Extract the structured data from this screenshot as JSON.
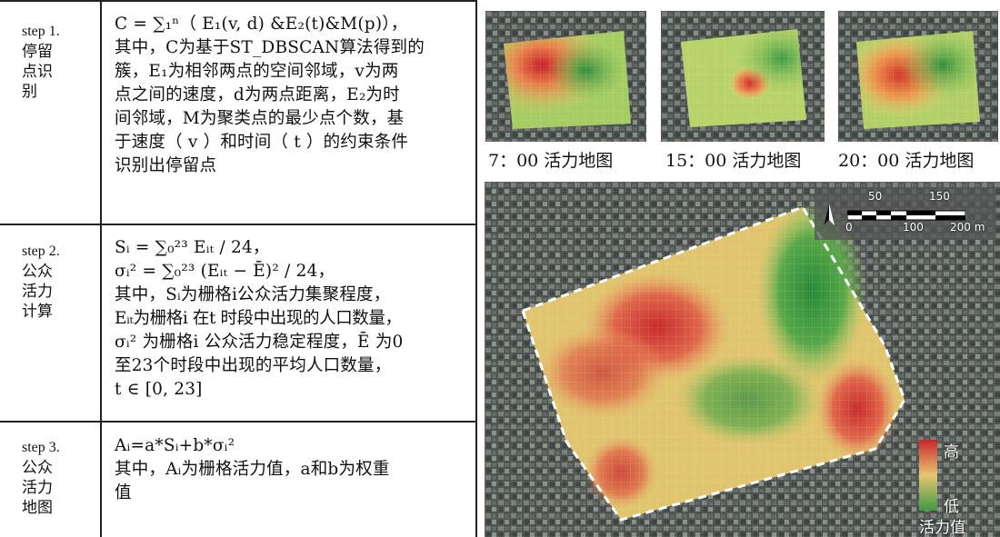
{
  "steps": [
    {
      "step": "step 1.",
      "label": [
        "停留",
        "点识",
        "别"
      ],
      "lines": [
        "C = ∑₁ⁿ（ E₁(v, d) &E₂(t)&M(p)），",
        "其中，C为基于ST_DBSCAN算法得到的",
        "簇，E₁为相邻两点的空间邻域，v为两",
        "点之间的速度，d为两点距离，E₂为时",
        "间邻域，M为聚类点的最少点个数，基",
        "于速度（ v ）和时间（ t ）的约束条件",
        "识别出停留点"
      ]
    },
    {
      "step": "step 2.",
      "label": [
        "公众",
        "活力",
        "计算"
      ],
      "lines": [
        "Sᵢ = ∑₀²³ Eᵢₜ / 24，",
        "σᵢ² = ∑₀²³ (Eᵢₜ − Ē)² / 24，",
        "其中，Sᵢ为栅格i公众活力集聚程度，",
        "Eᵢₜ为栅格i 在t 时段中出现的人口数量，",
        "σᵢ² 为栅格i 公众活力稳定程度，Ē 为0",
        "至23个时段中出现的平均人口数量，",
        "t ∈ [0, 23]"
      ]
    },
    {
      "step": "step 3.",
      "label": [
        "公众",
        "活力",
        "地图"
      ],
      "lines": [
        "Aᵢ=a*Sᵢ+b*σᵢ²",
        "其中，Aᵢ为栅格活力值，a和b为权重",
        "值"
      ]
    }
  ],
  "maps": {
    "captions": [
      "7：00 活力地图",
      "15：00 活力地图",
      "20：00 活力地图"
    ],
    "scale": {
      "top_labels": [
        "50",
        "150"
      ],
      "bottom_labels": [
        "0",
        "100",
        "200 m"
      ]
    },
    "legend": {
      "high": "高",
      "low": "低",
      "title": "活力值"
    },
    "colors": {
      "high": "#d7302a",
      "mid": "#f4e27a",
      "low": "#3f9a44"
    }
  }
}
